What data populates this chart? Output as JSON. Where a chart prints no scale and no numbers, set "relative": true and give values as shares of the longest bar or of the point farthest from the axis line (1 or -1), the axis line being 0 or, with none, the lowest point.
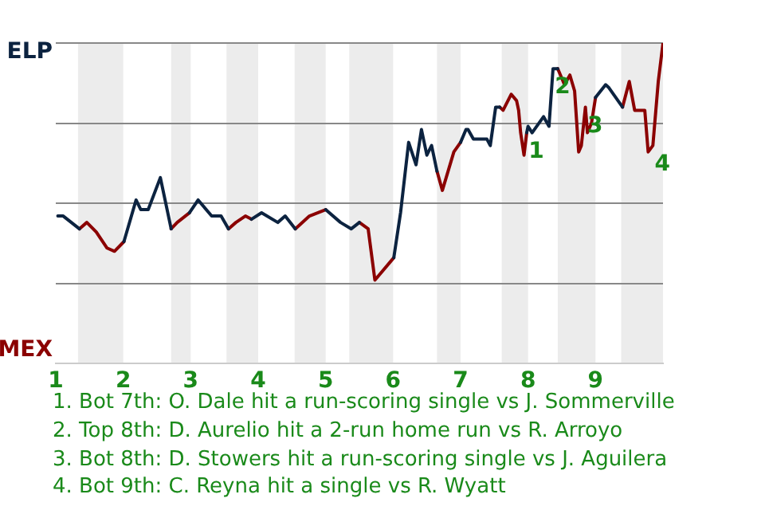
{
  "chart_data": {
    "type": "line",
    "relative": true,
    "x": [
      1.03,
      1.11,
      1.35,
      1.46,
      1.6,
      1.76,
      1.87,
      2.01,
      2.19,
      2.26,
      2.37,
      2.55,
      2.71,
      2.8,
      2.98,
      3.11,
      3.31,
      3.45,
      3.56,
      3.67,
      3.81,
      3.9,
      4.05,
      4.29,
      4.4,
      4.55,
      4.76,
      5,
      5.22,
      5.38,
      5.5,
      5.63,
      5.73,
      6.01,
      6.11,
      6.23,
      6.34,
      6.42,
      6.5,
      6.57,
      6.65,
      6.73,
      6.9,
      7,
      7.08,
      7.11,
      7.19,
      7.39,
      7.44,
      7.52,
      7.58,
      7.63,
      7.75,
      7.83,
      7.86,
      7.89,
      7.94,
      7.98,
      8,
      8.06,
      8.23,
      8.31,
      8.37,
      8.44,
      8.54,
      8.62,
      8.69,
      8.75,
      8.79,
      8.85,
      8.88,
      8.94,
      9,
      9.15,
      9.2,
      9.4,
      9.5,
      9.58,
      9.73,
      9.78,
      9.85,
      9.93,
      10
    ],
    "series": [
      {
        "color": "#0c2340",
        "values": [
          0.46,
          0.46,
          0.42,
          null,
          null,
          null,
          null,
          0.38,
          0.51,
          0.48,
          0.48,
          0.58,
          0.42,
          null,
          0.47,
          0.51,
          0.46,
          0.46,
          0.42,
          null,
          null,
          0.45,
          0.47,
          0.44,
          0.46,
          0.42,
          null,
          0.48,
          0.44,
          0.42,
          0.44,
          null,
          null,
          0.33,
          0.47,
          0.69,
          0.62,
          0.73,
          0.65,
          0.68,
          0.6,
          null,
          null,
          0.69,
          0.73,
          0.73,
          0.7,
          0.7,
          0.68,
          0.8,
          0.8,
          null,
          null,
          null,
          null,
          null,
          null,
          0.72,
          0.74,
          0.72,
          0.77,
          0.74,
          0.92,
          0.92,
          null,
          null,
          null,
          null,
          null,
          null,
          null,
          null,
          0.83,
          0.87,
          0.86,
          0.8,
          null,
          null,
          null,
          null,
          null,
          null,
          null
        ]
      },
      {
        "color": "#8b0000",
        "values": [
          null,
          null,
          0.42,
          0.44,
          0.41,
          0.36,
          0.35,
          0.38,
          null,
          null,
          null,
          null,
          0.42,
          0.44,
          0.47,
          null,
          null,
          null,
          0.42,
          0.44,
          0.46,
          0.45,
          null,
          null,
          null,
          0.42,
          0.46,
          0.48,
          null,
          null,
          0.44,
          0.42,
          0.26,
          0.33,
          null,
          null,
          null,
          null,
          null,
          null,
          0.6,
          0.54,
          0.66,
          0.69,
          null,
          null,
          null,
          null,
          null,
          null,
          0.8,
          0.79,
          0.84,
          0.82,
          0.79,
          0.72,
          0.65,
          0.72,
          null,
          null,
          null,
          null,
          null,
          0.92,
          0.87,
          0.9,
          0.85,
          0.66,
          0.68,
          0.8,
          0.72,
          0.75,
          0.83,
          null,
          null,
          0.8,
          0.88,
          0.79,
          0.79,
          0.66,
          0.68,
          0.88,
          1
        ]
      }
    ],
    "xlim": [
      1,
      10
    ],
    "xticks": [
      1,
      2,
      3,
      4,
      5,
      6,
      7,
      8,
      9
    ],
    "grid": "y",
    "marker": "none",
    "line_style": "solid",
    "legend": false,
    "bands": [
      {
        "axis": "x",
        "from": 1.33,
        "to": 2,
        "color": "#ececec"
      },
      {
        "axis": "x",
        "from": 2.71,
        "to": 3,
        "color": "#ececec"
      },
      {
        "axis": "x",
        "from": 3.53,
        "to": 4,
        "color": "#ececec"
      },
      {
        "axis": "x",
        "from": 4.54,
        "to": 5,
        "color": "#ececec"
      },
      {
        "axis": "x",
        "from": 5.35,
        "to": 6,
        "color": "#ececec"
      },
      {
        "axis": "x",
        "from": 6.65,
        "to": 7,
        "color": "#ececec"
      },
      {
        "axis": "x",
        "from": 7.61,
        "to": 8,
        "color": "#ececec"
      },
      {
        "axis": "x",
        "from": 8.44,
        "to": 9,
        "color": "#ececec"
      },
      {
        "axis": "x",
        "from": 9.38,
        "to": 10,
        "color": "#ececec"
      }
    ],
    "annotations": [
      "ELP",
      "MEX",
      {
        "text": "1",
        "x": 7.98,
        "y": 0.72
      },
      {
        "text": "2",
        "x": 8.37,
        "y": 0.92
      },
      {
        "text": "3",
        "x": 8.85,
        "y": 0.8
      },
      {
        "text": "4",
        "x": 9.85,
        "y": 0.68
      },
      "1. Bot 7th: O. Dale hit a run-scoring single vs J. Sommerville",
      "2. Top 8th: D. Aurelio hit a 2-run home run vs R. Arroyo",
      "3. Bot 8th: D. Stowers hit a run-scoring single vs J. Aguilera",
      "4. Bot 9th: C. Reyna hit a single vs R. Wyatt"
    ]
  }
}
